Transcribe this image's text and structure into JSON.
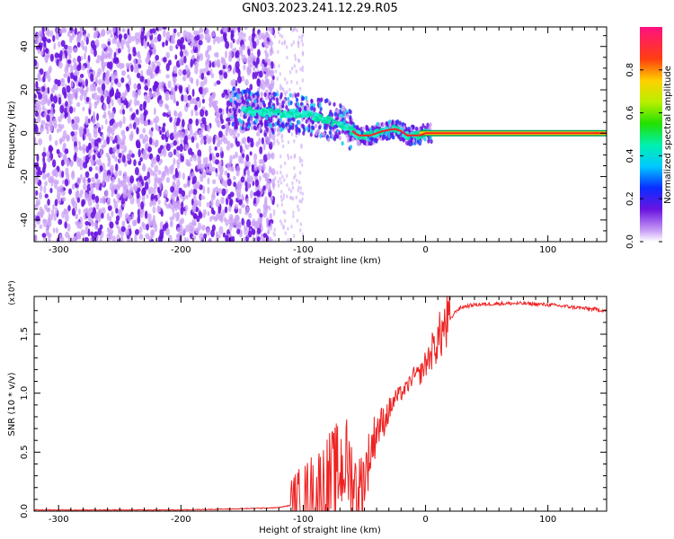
{
  "title": "GN03.2023.241.12.29.R05",
  "colors": {
    "snr_line": "#ee2222",
    "ridge": "#ff2020",
    "noise_light": "#c9a0f5",
    "noise_dark": "#6a14e0",
    "background": "#ffffff"
  },
  "chart_data": [
    {
      "type": "heatmap",
      "title": "",
      "xlabel": "Height of straight line (km)",
      "ylabel": "Frequency (Hz)",
      "xlim": [
        -320,
        148
      ],
      "ylim": [
        -50,
        49
      ],
      "xticks": [
        -300,
        -200,
        -100,
        0,
        100
      ],
      "yticks": [
        -40,
        -20,
        0,
        20,
        40
      ],
      "colorbar": {
        "label": "Normalized spectral amplitude",
        "range": [
          0,
          1
        ],
        "ticks": [
          "0.0",
          "0.2",
          "0.4",
          "0.6",
          "0.8"
        ]
      },
      "ridge": {
        "x": [
          -160,
          -140,
          -120,
          -100,
          -80,
          -65,
          -55,
          -45,
          -35,
          -25,
          -20,
          -15,
          -5,
          0,
          50,
          100,
          148
        ],
        "y": [
          12,
          10,
          9,
          9,
          6,
          3,
          -1,
          -1,
          1,
          2,
          1,
          -1,
          -1,
          0,
          0,
          0,
          0
        ]
      },
      "noise_region": {
        "x_from": -320,
        "x_to": -130
      }
    },
    {
      "type": "line",
      "title": "",
      "xlabel": "Height of straight line (km)",
      "ylabel": "SNR (10 * v/v)",
      "ylabel_scale": "(x10⁴)",
      "xlim": [
        -320,
        148
      ],
      "ylim": [
        0,
        1.82
      ],
      "xticks": [
        -300,
        -200,
        -100,
        0,
        100
      ],
      "yticks": [
        "0.0",
        "0.5",
        "1.0",
        "1.5"
      ],
      "ytick_values": [
        0,
        0.5,
        1.0,
        1.5
      ],
      "series": [
        {
          "name": "",
          "x": [
            -320,
            -200,
            -150,
            -120,
            -110,
            -100,
            -90,
            -80,
            -70,
            -65,
            -60,
            -55,
            -50,
            -45,
            -40,
            -35,
            -30,
            -25,
            -20,
            -15,
            -10,
            -5,
            0,
            5,
            10,
            15,
            20,
            25,
            30,
            40,
            60,
            80,
            100,
            120,
            148
          ],
          "y": [
            0.01,
            0.01,
            0.02,
            0.03,
            0.05,
            0.06,
            0.12,
            0.22,
            0.35,
            0.42,
            0.28,
            0.15,
            0.3,
            0.5,
            0.7,
            0.75,
            0.85,
            0.95,
            1.0,
            1.05,
            1.15,
            1.15,
            1.25,
            1.35,
            1.45,
            1.55,
            1.62,
            1.7,
            1.73,
            1.75,
            1.76,
            1.76,
            1.75,
            1.73,
            1.7
          ]
        }
      ]
    }
  ]
}
